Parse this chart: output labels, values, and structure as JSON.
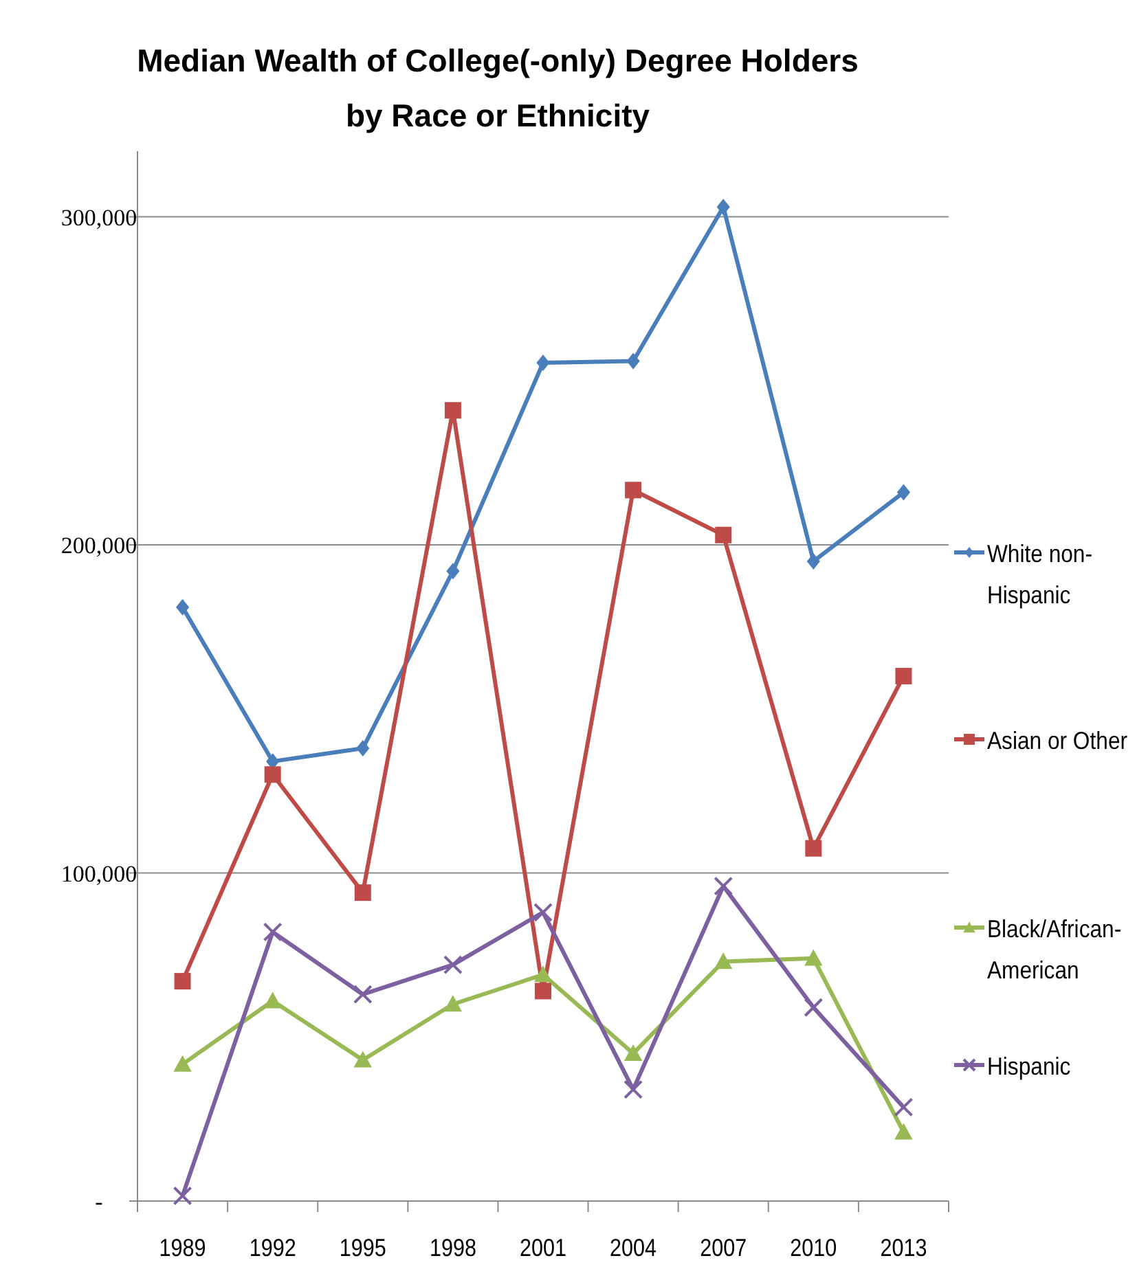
{
  "chart_data": {
    "type": "line",
    "title": "Median Wealth of College(-only) Degree Holders by Race or Ethnicity",
    "categories": [
      "1989",
      "1992",
      "1995",
      "1998",
      "2001",
      "2004",
      "2007",
      "2010",
      "2013"
    ],
    "series": [
      {
        "name": "White non-Hispanic",
        "color": "#4a7ebb",
        "marker": "diamond",
        "values": [
          181000,
          134000,
          138000,
          192000,
          255500,
          256000,
          303000,
          195000,
          216000
        ]
      },
      {
        "name": "Asian or Other",
        "color": "#be4b48",
        "marker": "square",
        "values": [
          67000,
          130000,
          94000,
          241000,
          64000,
          216700,
          203000,
          107500,
          160000
        ]
      },
      {
        "name": "Black/African-American",
        "color": "#98b954",
        "marker": "triangle",
        "values": [
          41700,
          61000,
          43000,
          60000,
          69000,
          45000,
          73000,
          74000,
          21000
        ]
      },
      {
        "name": "Hispanic",
        "color": "#7d60a0",
        "marker": "cross",
        "values": [
          1600,
          82000,
          63000,
          72000,
          88000,
          34000,
          96000,
          59000,
          28600
        ]
      }
    ],
    "ylim": [
      0,
      320000
    ],
    "yticks": [
      {
        "value": 0,
        "label": "-"
      },
      {
        "value": 100000,
        "label": "100,000"
      },
      {
        "value": 200000,
        "label": "200,000"
      },
      {
        "value": 300000,
        "label": "300,000"
      }
    ],
    "grid": "y",
    "legend": "right"
  }
}
